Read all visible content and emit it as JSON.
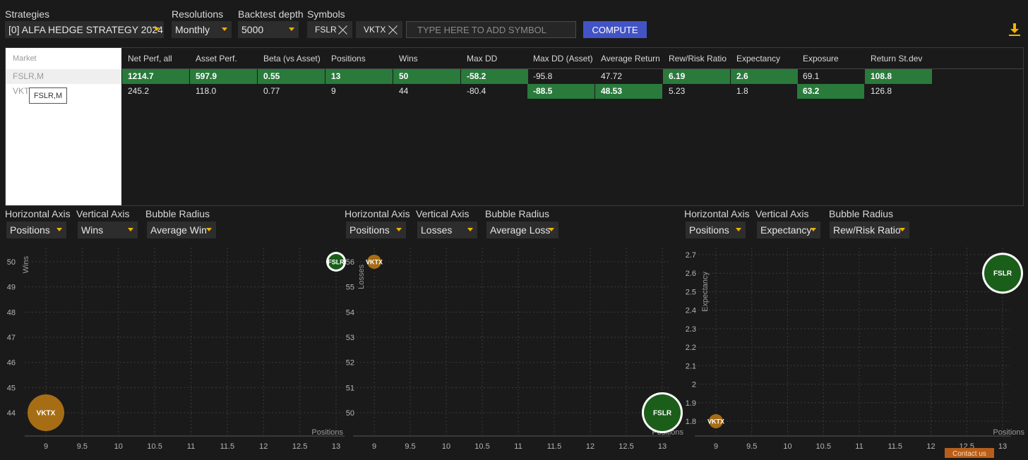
{
  "toolbar": {
    "strategies_label": "Strategies",
    "strategy_value": "[0] ALFA HEDGE STRATEGY 2024",
    "resolutions_label": "Resolutions",
    "resolution_value": "Monthly",
    "depth_label": "Backtest depth",
    "depth_value": "5000",
    "symbols_label": "Symbols",
    "symbols": [
      "FSLR",
      "VKTX"
    ],
    "symbol_placeholder": "TYPE HERE TO ADD SYMBOL",
    "compute_label": "COMPUTE"
  },
  "table": {
    "market_header": "Market",
    "markets": [
      "FSLR,M",
      "VKTX"
    ],
    "tooltip": "FSLR,M",
    "columns": [
      "Net Perf, all",
      "Asset Perf.",
      "Beta (vs Asset)",
      "Positions",
      "Wins",
      "Max DD",
      "Max DD (Asset)",
      "Average Return",
      "Rew/Risk Ratio",
      "Expectancy",
      "Exposure",
      "Return St.dev"
    ],
    "rows": [
      {
        "values": [
          "1214.7",
          "597.9",
          "0.55",
          "13",
          "50",
          "-58.2",
          "-95.8",
          "47.72",
          "6.19",
          "2.6",
          "69.1",
          "108.8"
        ],
        "highlight": [
          true,
          true,
          true,
          true,
          true,
          true,
          false,
          false,
          true,
          true,
          false,
          true
        ]
      },
      {
        "values": [
          "245.2",
          "118.0",
          "0.77",
          "9",
          "44",
          "-80.4",
          "-88.5",
          "48.53",
          "5.23",
          "1.8",
          "63.2",
          "126.8"
        ],
        "highlight": [
          false,
          false,
          false,
          false,
          false,
          false,
          true,
          true,
          false,
          false,
          true,
          false
        ]
      }
    ]
  },
  "charts": [
    {
      "h_label": "Horizontal Axis",
      "v_label": "Vertical Axis",
      "r_label": "Bubble Radius",
      "h_value": "Positions",
      "v_value": "Wins",
      "r_value": "Average Win"
    },
    {
      "h_label": "Horizontal Axis",
      "v_label": "Vertical Axis",
      "r_label": "Bubble Radius",
      "h_value": "Positions",
      "v_value": "Losses",
      "r_value": "Average Loss"
    },
    {
      "h_label": "Horizontal Axis",
      "v_label": "Vertical Axis",
      "r_label": "Bubble Radius",
      "h_value": "Positions",
      "v_value": "Expectancy",
      "r_value": "Rew/Risk Ratio"
    }
  ],
  "chart_data": [
    {
      "type": "scatter",
      "xlabel": "Positions",
      "ylabel": "Wins",
      "xticks": [
        "9",
        "9.5",
        "10",
        "10.5",
        "11",
        "11.5",
        "12",
        "12.5",
        "13"
      ],
      "yticks": [
        "44",
        "45",
        "46",
        "47",
        "48",
        "49",
        "50"
      ],
      "xlim": [
        9,
        13
      ],
      "ylim": [
        44,
        50
      ],
      "points": [
        {
          "label": "FSLR",
          "x": 13,
          "y": 50,
          "size": "small",
          "color": "#1a5e1a",
          "ring": true
        },
        {
          "label": "VKTX",
          "x": 9,
          "y": 44,
          "size": "large",
          "color": "#a76d14",
          "ring": false
        }
      ]
    },
    {
      "type": "scatter",
      "xlabel": "Positions",
      "ylabel": "Losses",
      "xticks": [
        "9",
        "9.5",
        "10",
        "10.5",
        "11",
        "11.5",
        "12",
        "12.5",
        "13"
      ],
      "yticks": [
        "50",
        "51",
        "52",
        "53",
        "54",
        "55",
        "56"
      ],
      "xlim": [
        9,
        13
      ],
      "ylim": [
        50,
        56
      ],
      "points": [
        {
          "label": "VKTX",
          "x": 9,
          "y": 56,
          "size": "small",
          "color": "#a76d14",
          "ring": false
        },
        {
          "label": "FSLR",
          "x": 13,
          "y": 50,
          "size": "large",
          "color": "#1a5e1a",
          "ring": true
        }
      ]
    },
    {
      "type": "scatter",
      "xlabel": "Positions",
      "ylabel": "Expectancy",
      "xticks": [
        "9",
        "9.5",
        "10",
        "10.5",
        "11",
        "11.5",
        "12",
        "12.5",
        "13"
      ],
      "yticks": [
        "1.8",
        "1.9",
        "2",
        "2.1",
        "2.2",
        "2.3",
        "2.4",
        "2.5",
        "2.6",
        "2.7"
      ],
      "xlim": [
        9,
        13
      ],
      "ylim": [
        1.8,
        2.7
      ],
      "points": [
        {
          "label": "FSLR",
          "x": 13,
          "y": 2.6,
          "size": "large",
          "color": "#1a5e1a",
          "ring": true
        },
        {
          "label": "VKTX",
          "x": 9,
          "y": 1.8,
          "size": "small",
          "color": "#a76d14",
          "ring": false
        }
      ]
    }
  ],
  "footer": {
    "contact": "Contact us"
  }
}
